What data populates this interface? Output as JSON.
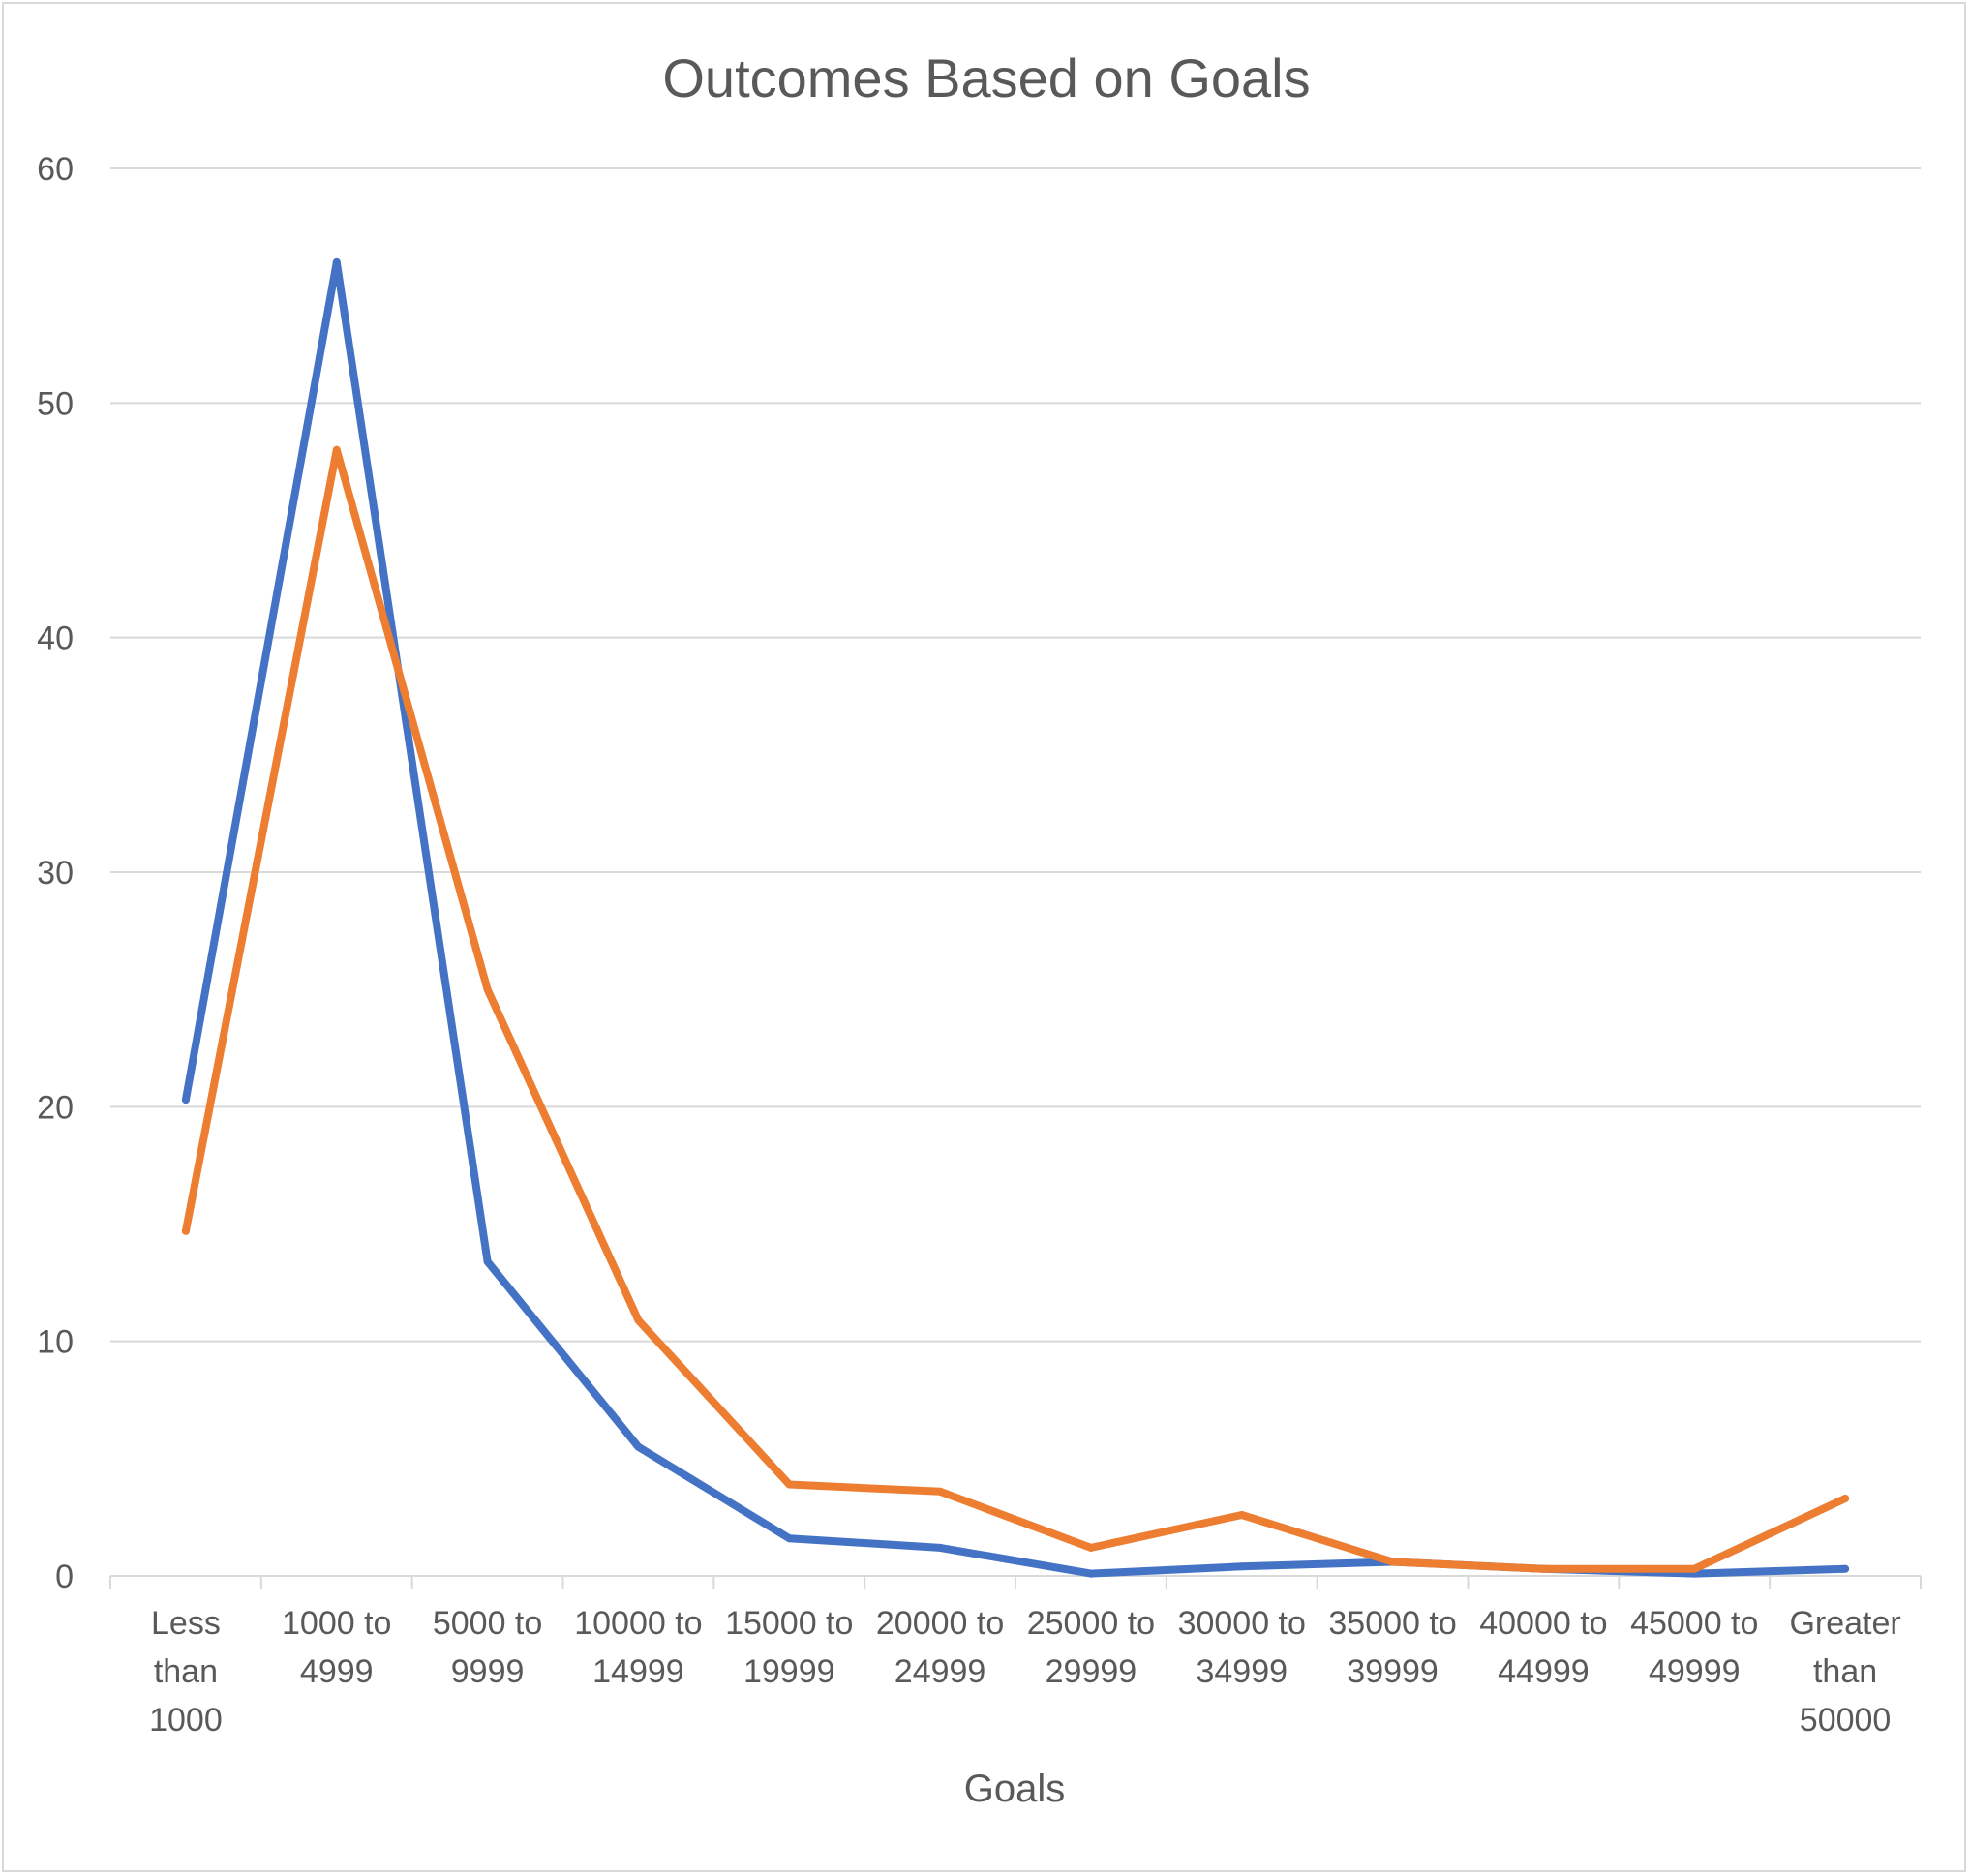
{
  "chart_data": {
    "type": "line",
    "title": "Outcomes Based on Goals",
    "xlabel": "Goals",
    "ylabel": "",
    "ylim": [
      0,
      60
    ],
    "yticks": [
      "0",
      "10",
      "20",
      "30",
      "40",
      "50",
      "60"
    ],
    "grid": true,
    "legend": "none",
    "categories": [
      [
        "Less",
        "than",
        "1000"
      ],
      [
        "1000 to",
        "4999"
      ],
      [
        "5000 to",
        "9999"
      ],
      [
        "10000 to",
        "14999"
      ],
      [
        "15000 to",
        "19999"
      ],
      [
        "20000 to",
        "24999"
      ],
      [
        "25000 to",
        "29999"
      ],
      [
        "30000 to",
        "34999"
      ],
      [
        "35000 to",
        "39999"
      ],
      [
        "40000 to",
        "44999"
      ],
      [
        "45000 to",
        "49999"
      ],
      [
        "Greater",
        "than",
        "50000"
      ]
    ],
    "series": [
      {
        "color": "#4472c4",
        "values": [
          20.3,
          56,
          13.4,
          5.5,
          1.6,
          1.2,
          0.1,
          0.4,
          0.6,
          0.3,
          0.1,
          0.3
        ]
      },
      {
        "color": "#ed7d31",
        "values": [
          14.7,
          48,
          25,
          10.9,
          3.9,
          3.6,
          1.2,
          2.6,
          0.6,
          0.3,
          0.3,
          3.3
        ]
      }
    ]
  }
}
